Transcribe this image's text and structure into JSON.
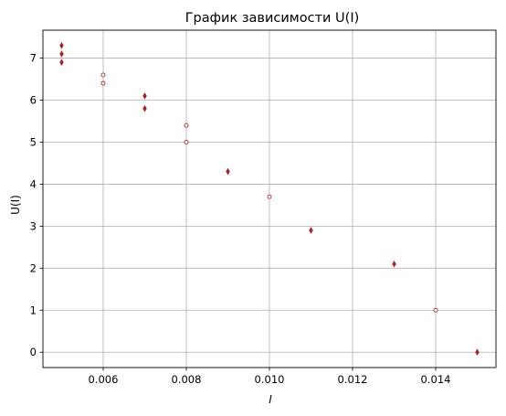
{
  "chart_data": {
    "type": "scatter",
    "title": "График зависимости U(I)",
    "xlabel": "I",
    "ylabel": "U(I)",
    "xlim": [
      0.00455,
      0.01545
    ],
    "ylim": [
      -0.365,
      7.665
    ],
    "xticks": [
      0.006,
      0.008,
      0.01,
      0.012,
      0.014
    ],
    "xtick_labels": [
      "0.006",
      "0.008",
      "0.010",
      "0.012",
      "0.014"
    ],
    "yticks": [
      0,
      1,
      2,
      3,
      4,
      5,
      6,
      7
    ],
    "ytick_labels": [
      "0",
      "1",
      "2",
      "3",
      "4",
      "5",
      "6",
      "7"
    ],
    "grid": true,
    "legend": "none",
    "marker_color": "#b22222",
    "points": [
      {
        "x": 0.005,
        "y": 7.3,
        "marker": "diamond"
      },
      {
        "x": 0.005,
        "y": 7.1,
        "marker": "diamond"
      },
      {
        "x": 0.005,
        "y": 6.9,
        "marker": "diamond"
      },
      {
        "x": 0.006,
        "y": 6.6,
        "marker": "circle"
      },
      {
        "x": 0.006,
        "y": 6.4,
        "marker": "circle"
      },
      {
        "x": 0.007,
        "y": 6.1,
        "marker": "diamond"
      },
      {
        "x": 0.007,
        "y": 5.8,
        "marker": "diamond"
      },
      {
        "x": 0.008,
        "y": 5.4,
        "marker": "circle"
      },
      {
        "x": 0.008,
        "y": 5.0,
        "marker": "circle"
      },
      {
        "x": 0.009,
        "y": 4.3,
        "marker": "diamond"
      },
      {
        "x": 0.01,
        "y": 3.7,
        "marker": "circle"
      },
      {
        "x": 0.011,
        "y": 2.9,
        "marker": "diamond"
      },
      {
        "x": 0.013,
        "y": 2.1,
        "marker": "diamond"
      },
      {
        "x": 0.014,
        "y": 1.0,
        "marker": "circle"
      },
      {
        "x": 0.015,
        "y": 0.0,
        "marker": "diamond"
      }
    ]
  }
}
